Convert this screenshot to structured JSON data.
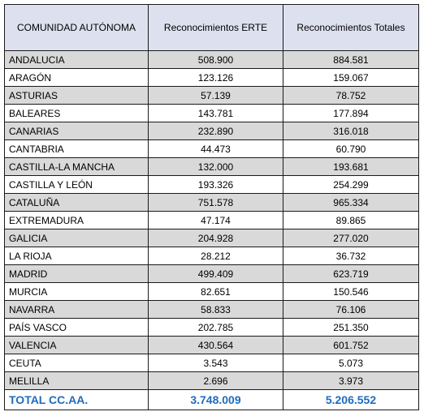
{
  "table": {
    "headers": [
      "COMUNIDAD AUTÓNOMA",
      "Reconocimientos ERTE",
      "Reconocimientos Totales"
    ],
    "rows": [
      {
        "name": "ANDALUCIA",
        "erte": "508.900",
        "totales": "884.581",
        "shaded": true
      },
      {
        "name": "ARAGÓN",
        "erte": "123.126",
        "totales": "159.067",
        "shaded": false
      },
      {
        "name": "ASTURIAS",
        "erte": "57.139",
        "totales": "78.752",
        "shaded": true
      },
      {
        "name": "BALEARES",
        "erte": "143.781",
        "totales": "177.894",
        "shaded": false
      },
      {
        "name": "CANARIAS",
        "erte": "232.890",
        "totales": "316.018",
        "shaded": true
      },
      {
        "name": "CANTABRIA",
        "erte": "44.473",
        "totales": "60.790",
        "shaded": false
      },
      {
        "name": "CASTILLA-LA MANCHA",
        "erte": "132.000",
        "totales": "193.681",
        "shaded": true
      },
      {
        "name": "CASTILLA Y LEÓN",
        "erte": "193.326",
        "totales": "254.299",
        "shaded": false
      },
      {
        "name": "CATALUÑA",
        "erte": "751.578",
        "totales": "965.334",
        "shaded": true
      },
      {
        "name": "EXTREMADURA",
        "erte": "47.174",
        "totales": "89.865",
        "shaded": false
      },
      {
        "name": "GALICIA",
        "erte": "204.928",
        "totales": "277.020",
        "shaded": true
      },
      {
        "name": "LA RIOJA",
        "erte": "28.212",
        "totales": "36.732",
        "shaded": false
      },
      {
        "name": "MADRID",
        "erte": "499.409",
        "totales": "623.719",
        "shaded": true
      },
      {
        "name": "MURCIA",
        "erte": "82.651",
        "totales": "150.546",
        "shaded": false
      },
      {
        "name": "NAVARRA",
        "erte": "58.833",
        "totales": "76.106",
        "shaded": true
      },
      {
        "name": "PAÍS VASCO",
        "erte": "202.785",
        "totales": "251.350",
        "shaded": false
      },
      {
        "name": "VALENCIA",
        "erte": "430.564",
        "totales": "601.752",
        "shaded": true
      },
      {
        "name": "CEUTA",
        "erte": "3.543",
        "totales": "5.073",
        "shaded": false
      },
      {
        "name": "MELILLA",
        "erte": "2.696",
        "totales": "3.973",
        "shaded": true
      }
    ],
    "total": {
      "name": "TOTAL CC.AA.",
      "erte": "3.748.009",
      "totales": "5.206.552"
    }
  },
  "colors": {
    "header_bg": "#dde1ef",
    "shaded_row_bg": "#d9d9d9",
    "total_text": "#1f6bbf"
  }
}
